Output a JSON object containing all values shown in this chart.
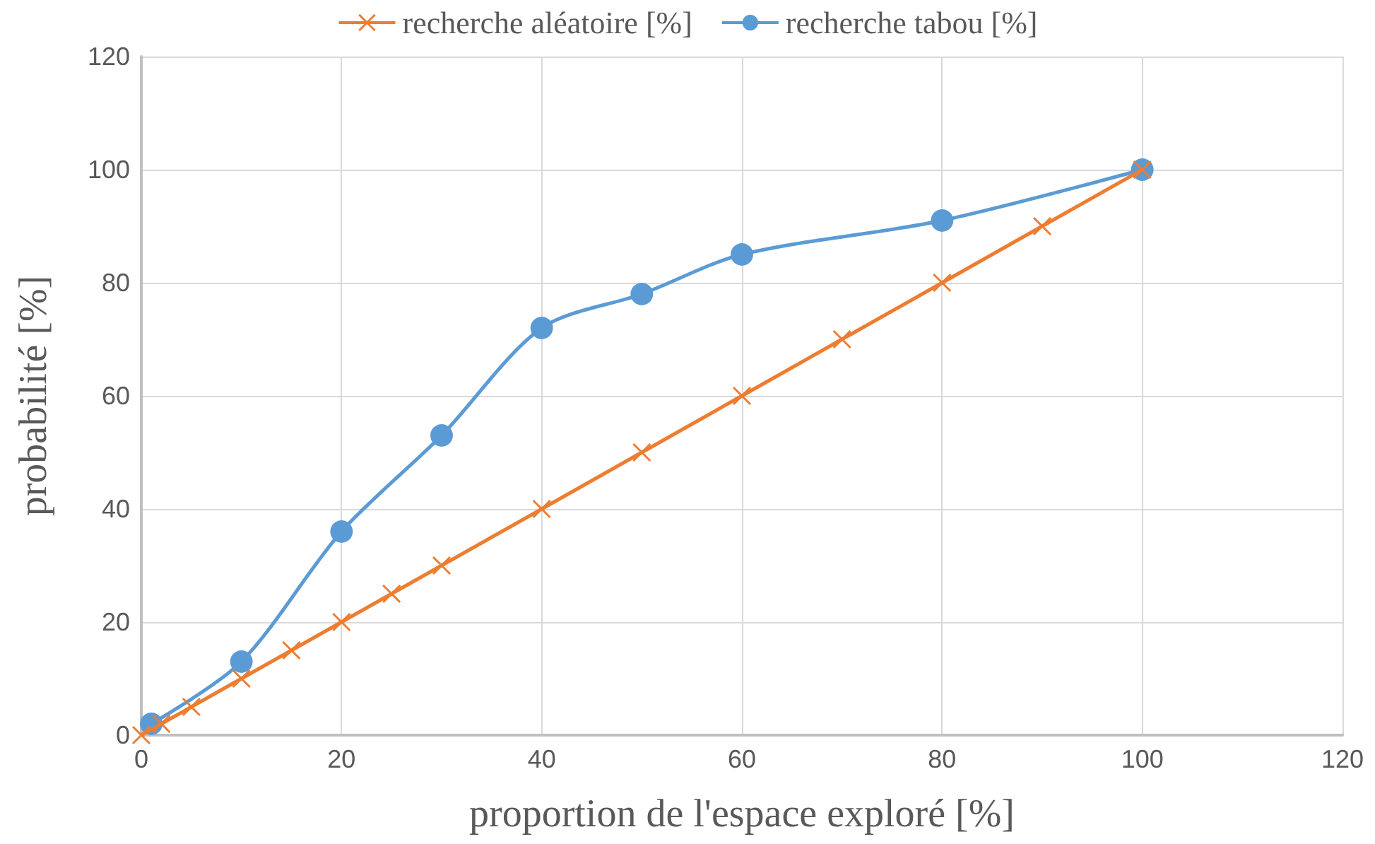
{
  "chart_data": {
    "type": "line",
    "xlabel": "proportion de l'espace exploré [%]",
    "ylabel": "probabilité [%]",
    "xlim": [
      0,
      120
    ],
    "xticks": [
      0,
      20,
      40,
      60,
      80,
      100,
      120
    ],
    "ylim": [
      0,
      120
    ],
    "yticks": [
      0,
      20,
      40,
      60,
      80,
      100,
      120
    ],
    "grid": true,
    "legend": "top",
    "series": [
      {
        "name": "recherche aléatoire [%]",
        "color": "#ed7d31",
        "marker": "cross",
        "x": [
          0,
          2,
          5,
          10,
          15,
          20,
          25,
          30,
          40,
          50,
          60,
          70,
          80,
          90,
          100
        ],
        "values": [
          0,
          2,
          5,
          10,
          15,
          20,
          25,
          30,
          40,
          50,
          60,
          70,
          80,
          90,
          100
        ]
      },
      {
        "name": "recherche tabou [%]",
        "color": "#5b9bd5",
        "marker": "circle",
        "x": [
          1,
          10,
          20,
          30,
          40,
          50,
          60,
          80,
          100
        ],
        "values": [
          2,
          13,
          36,
          53,
          72,
          78,
          85,
          91,
          100
        ]
      }
    ]
  }
}
